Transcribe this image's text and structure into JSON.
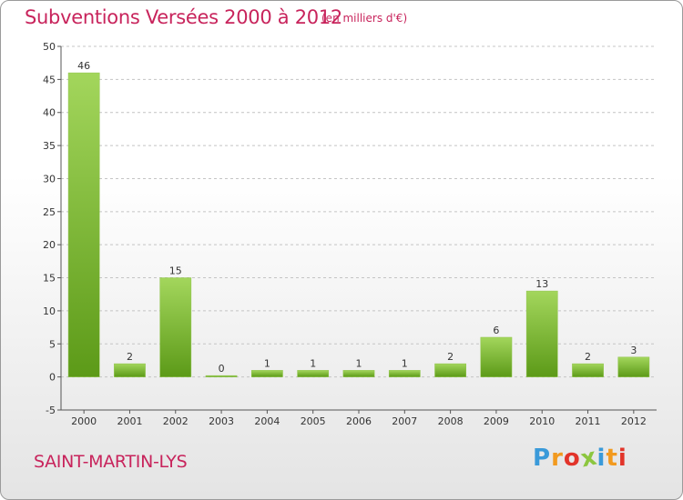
{
  "title": "Subventions Versées 2000 à 2012",
  "unit_note": "(en milliers d'€)",
  "commune": "SAINT-MARTIN-LYS",
  "logo": {
    "letters": [
      "P",
      "r",
      "o",
      "x",
      "i",
      "t",
      "i"
    ],
    "colors": [
      "#3a9ad9",
      "#f29a1f",
      "#e2342a",
      "#8cc63f",
      "#3a9ad9",
      "#f29a1f",
      "#e2342a"
    ]
  },
  "colors": {
    "accent": "#c8245c",
    "bar_light": "#a3d65c",
    "bar_dark": "#5c9a18",
    "grid": "#c4c4c4",
    "axis": "#555555"
  },
  "chart_data": {
    "type": "bar",
    "categories": [
      "2000",
      "2001",
      "2002",
      "2003",
      "2004",
      "2005",
      "2006",
      "2007",
      "2008",
      "2009",
      "2010",
      "2011",
      "2012"
    ],
    "values": [
      46,
      2,
      15,
      0,
      1,
      1,
      1,
      1,
      2,
      6,
      13,
      2,
      3
    ],
    "data_labels": [
      "46",
      "2",
      "15",
      "0",
      "1",
      "1",
      "1",
      "1",
      "2",
      "6",
      "13",
      "2",
      "3"
    ],
    "yticks": [
      -5,
      0,
      5,
      10,
      15,
      20,
      25,
      30,
      35,
      40,
      45,
      50
    ],
    "ylim": [
      -5,
      50
    ],
    "grid": true,
    "legend": "none"
  }
}
